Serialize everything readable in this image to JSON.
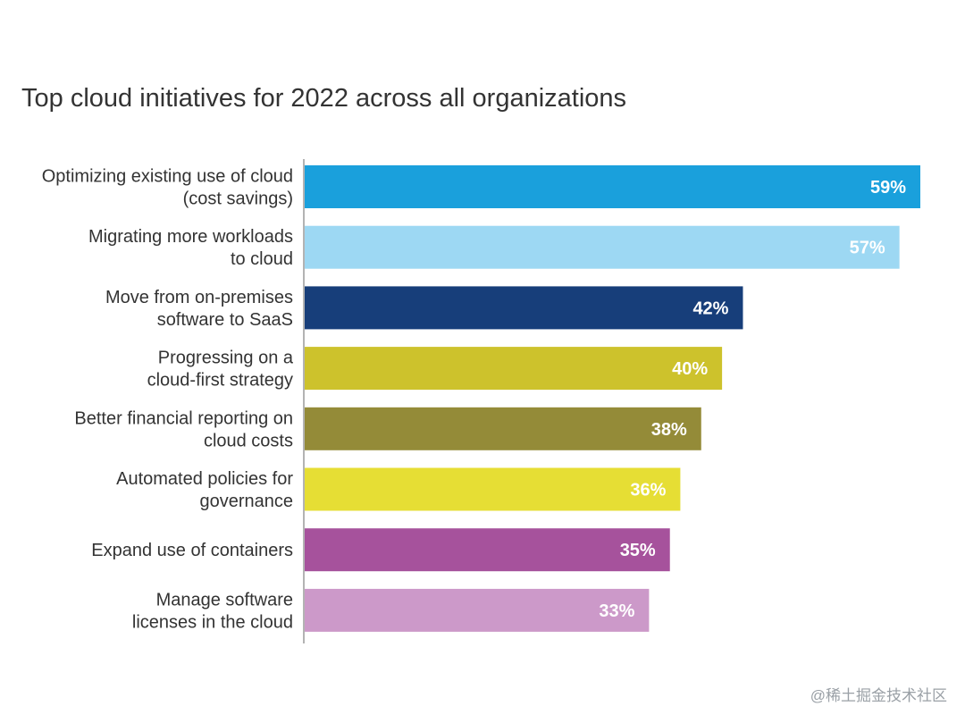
{
  "chart_data": {
    "type": "bar",
    "orientation": "horizontal",
    "title": "Top cloud initiatives for 2022 across all organizations",
    "xlabel": "",
    "ylabel": "",
    "xlim": [
      0,
      59
    ],
    "grid": false,
    "legend": "none",
    "categories": [
      [
        "Optimizing existing use of cloud",
        "(cost savings)"
      ],
      [
        "Migrating more workloads",
        "to cloud"
      ],
      [
        "Move from on-premises",
        "software to SaaS"
      ],
      [
        "Progressing on a",
        "cloud-first strategy"
      ],
      [
        "Better financial reporting on",
        "cloud costs"
      ],
      [
        "Automated policies for",
        "governance"
      ],
      [
        "Expand use of containers"
      ],
      [
        "Manage software",
        "licenses in the cloud"
      ]
    ],
    "values": [
      59,
      57,
      42,
      40,
      38,
      36,
      35,
      33
    ],
    "value_labels": [
      "59%",
      "57%",
      "42%",
      "40%",
      "38%",
      "36%",
      "35%",
      "33%"
    ],
    "colors": [
      "#1aa0dc",
      "#9dd8f3",
      "#173e7a",
      "#cdc22c",
      "#948b38",
      "#e6de34",
      "#a6529c",
      "#cc99c9"
    ],
    "value_label_color": "#ffffff"
  },
  "watermark": "@稀土掘金技术社区"
}
